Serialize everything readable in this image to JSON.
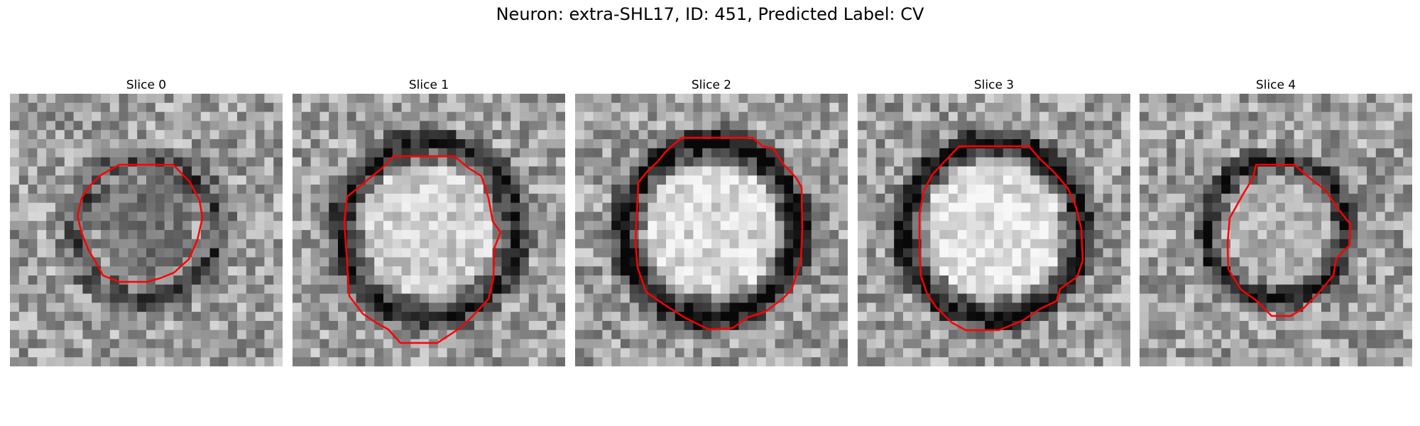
{
  "figure": {
    "suptitle": "Neuron: extra-SHL17, ID: 451, Predicted Label: CV"
  },
  "panels": [
    {
      "title": "Slice 0",
      "ring_outer": 0.34,
      "ring_inner": 0.18,
      "darkness": 0.35,
      "center_brightness": 0.45
    },
    {
      "title": "Slice 1",
      "ring_outer": 0.4,
      "ring_inner": 0.24,
      "darkness": 0.55,
      "center_brightness": 0.8
    },
    {
      "title": "Slice 2",
      "ring_outer": 0.4,
      "ring_inner": 0.24,
      "darkness": 0.65,
      "center_brightness": 0.85
    },
    {
      "title": "Slice 3",
      "ring_outer": 0.4,
      "ring_inner": 0.25,
      "darkness": 0.65,
      "center_brightness": 0.88
    },
    {
      "title": "Slice 4",
      "ring_outer": 0.32,
      "ring_inner": 0.19,
      "darkness": 0.55,
      "center_brightness": 0.7
    }
  ],
  "colors": {
    "contour": "#ff0000"
  }
}
